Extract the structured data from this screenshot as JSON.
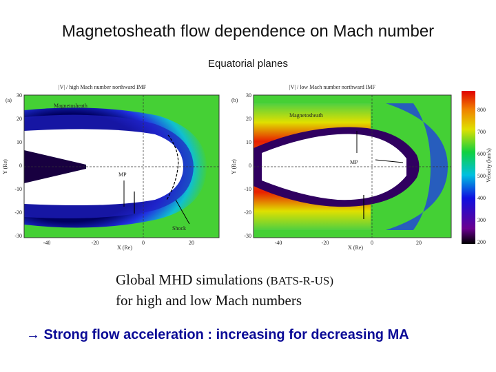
{
  "title": "Magnetosheath flow dependence on Mach number",
  "subtitle": "Equatorial planes",
  "figure": {
    "panels": [
      {
        "label": "(a)",
        "title": "|V| / high Mach number northward IMF",
        "region": "Magnetosheath",
        "mp": "MP",
        "shock": "Shock",
        "xlabel": "X (Re)",
        "ylabel": "Y (Re)",
        "xticks": [
          "-40",
          "-20",
          "0",
          "20"
        ],
        "yticks": [
          "30",
          "20",
          "10",
          "0",
          "-10",
          "-20",
          "-30"
        ]
      },
      {
        "label": "(b)",
        "title": "|V| / low Mach number northward IMF",
        "region": "Magnetosheath",
        "mp": "MP",
        "xlabel": "X (Re)",
        "ylabel": "Y (Re)",
        "xticks": [
          "-40",
          "-20",
          "0",
          "20"
        ],
        "yticks": [
          "30",
          "20",
          "10",
          "0",
          "-10",
          "-20",
          "-30"
        ]
      }
    ],
    "colorbar": {
      "label": "Velocity (km/s)",
      "ticks": [
        "800",
        "700",
        "600",
        "500",
        "400",
        "300",
        "200"
      ]
    }
  },
  "caption": {
    "line1": "Global MHD simulations",
    "code": "(BATS-R-US)",
    "line2": "for high and low Mach numbers"
  },
  "conclusion": "→ Strong flow acceleration : increasing for decreasing MA"
}
